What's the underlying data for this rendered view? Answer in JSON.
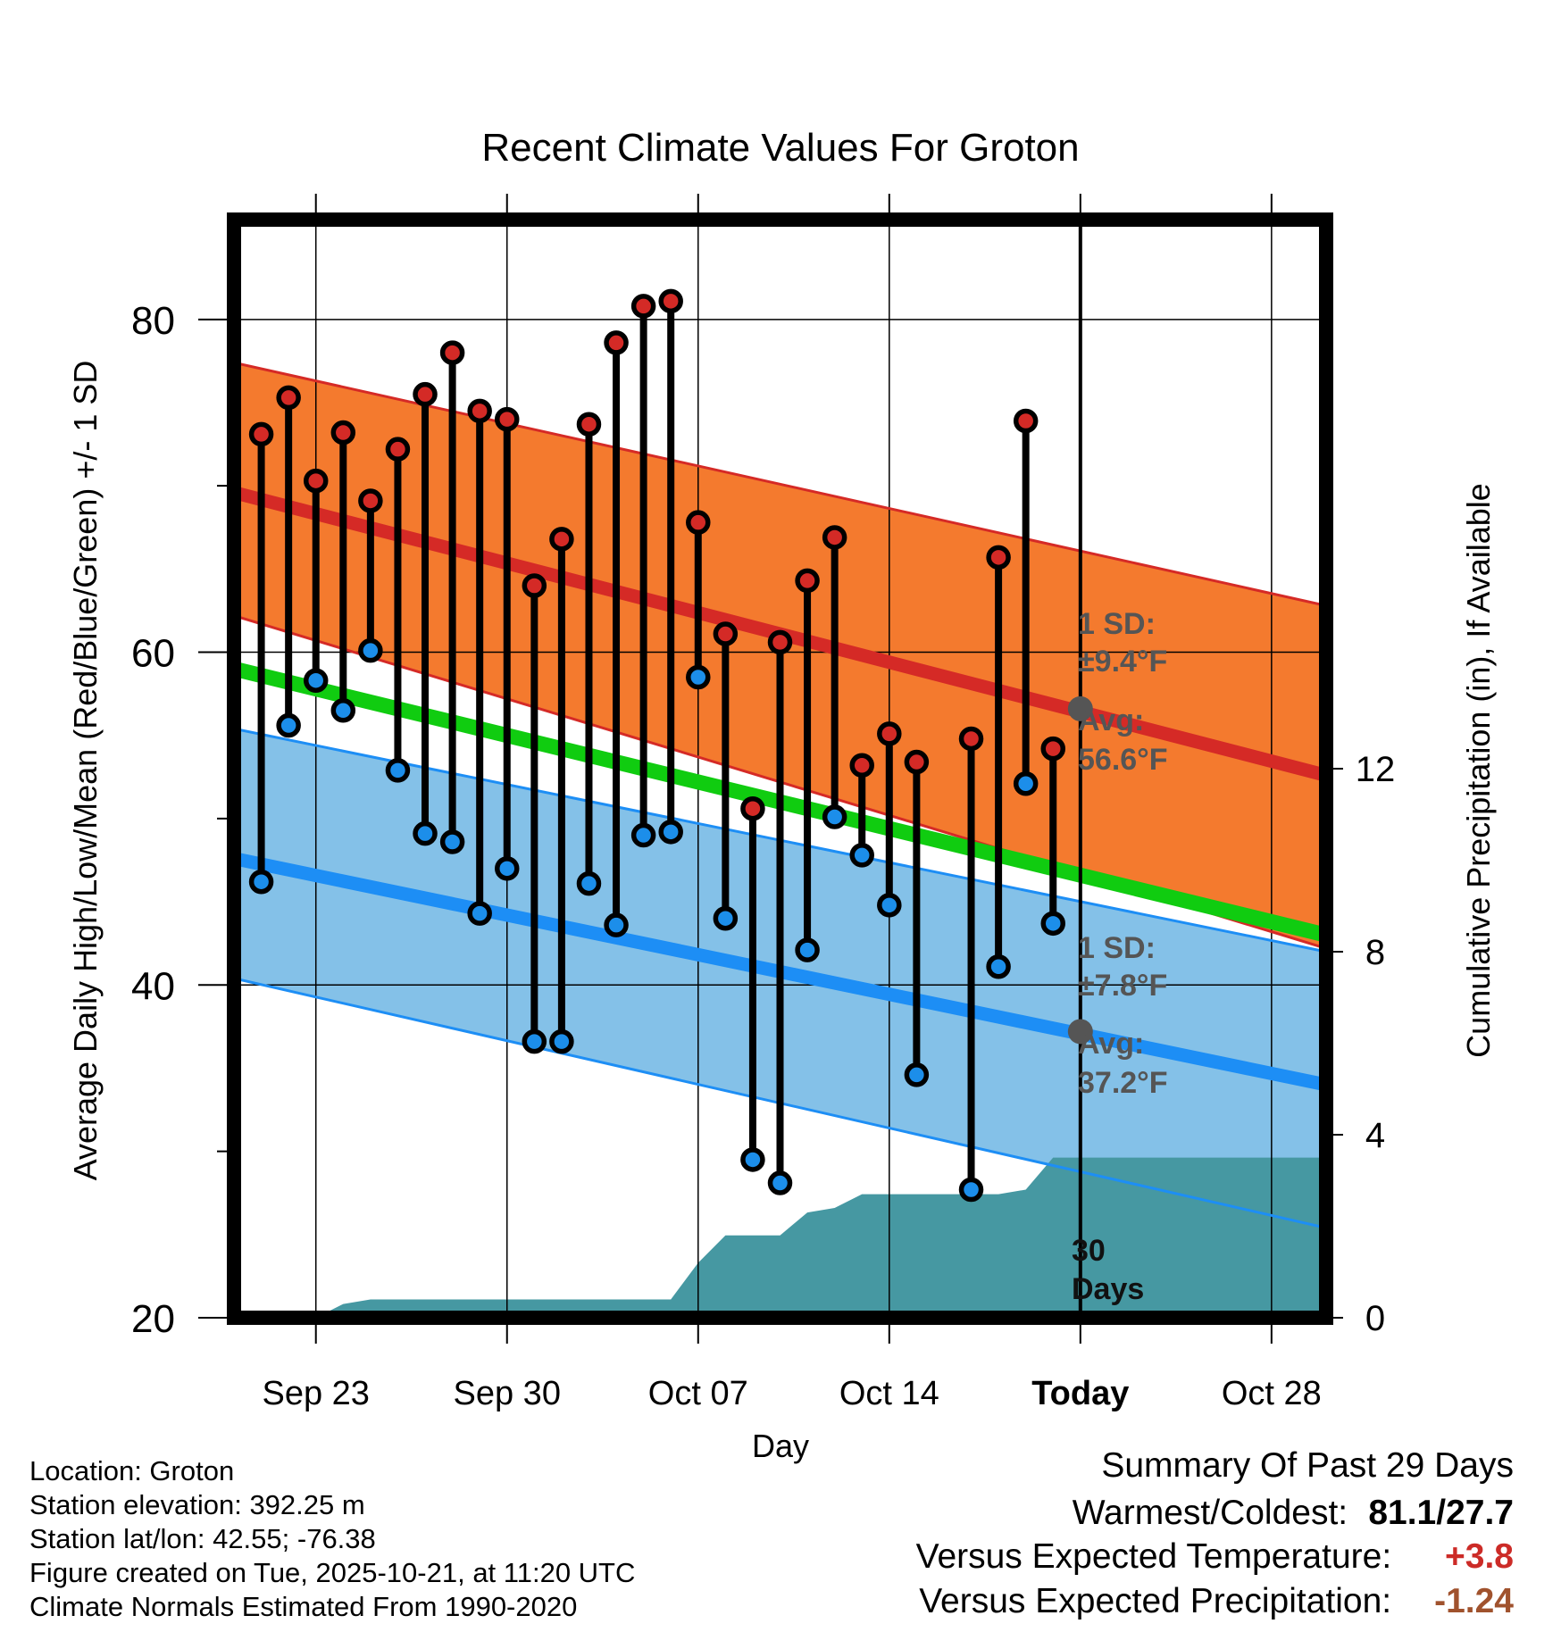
{
  "chart_data": {
    "type": "line",
    "title": "Recent Climate Values For Groton",
    "xlabel": "Day",
    "ylabel": "Average Daily High/Low/Mean (Red/Blue/Green) +/- 1 SD",
    "ylabel_right": "Cumulative Precipitation (in), If Available",
    "x_range_days": [
      0,
      40
    ],
    "ylim": [
      20,
      86
    ],
    "ylim_right": [
      0,
      24
    ],
    "y_ticks": [
      20,
      40,
      60,
      80
    ],
    "y_ticks_right": [
      0,
      4,
      8,
      12
    ],
    "x_ticks": [
      {
        "day": 3,
        "label": "Sep 23"
      },
      {
        "day": 10,
        "label": "Sep 30"
      },
      {
        "day": 17,
        "label": "Oct 07"
      },
      {
        "day": 24,
        "label": "Oct 14"
      },
      {
        "day": 31,
        "label": "Today"
      },
      {
        "day": 38,
        "label": "Oct 28"
      }
    ],
    "today_day": 31,
    "normals": {
      "high_mean": [
        69.6,
        52.6
      ],
      "high_upper": [
        77.4,
        62.8
      ],
      "high_lower": [
        62.2,
        42.2
      ],
      "mean": [
        59,
        43
      ],
      "low_mean": [
        47.6,
        34
      ],
      "low_upper": [
        55.4,
        42
      ],
      "low_lower": [
        40.4,
        25.4
      ]
    },
    "daily": [
      {
        "day": 1,
        "high": 73.1,
        "low": 46.2
      },
      {
        "day": 2,
        "high": 75.3,
        "low": 55.6
      },
      {
        "day": 3,
        "high": 70.3,
        "low": 58.3
      },
      {
        "day": 4,
        "high": 73.2,
        "low": 56.5
      },
      {
        "day": 5,
        "high": 69.1,
        "low": 60.1
      },
      {
        "day": 6,
        "high": 72.2,
        "low": 52.9
      },
      {
        "day": 7,
        "high": 75.5,
        "low": 49.1
      },
      {
        "day": 8,
        "high": 78.0,
        "low": 48.6
      },
      {
        "day": 9,
        "high": 74.5,
        "low": 44.3
      },
      {
        "day": 10,
        "high": 74.0,
        "low": 47.0
      },
      {
        "day": 11,
        "high": 64.0,
        "low": 36.6
      },
      {
        "day": 12,
        "high": 66.8,
        "low": 36.6
      },
      {
        "day": 13,
        "high": 73.7,
        "low": 46.1
      },
      {
        "day": 14,
        "high": 78.6,
        "low": 43.6
      },
      {
        "day": 15,
        "high": 80.8,
        "low": 49.0
      },
      {
        "day": 16,
        "high": 81.1,
        "low": 49.2
      },
      {
        "day": 17,
        "high": 67.8,
        "low": 58.5
      },
      {
        "day": 18,
        "high": 61.1,
        "low": 44.0
      },
      {
        "day": 19,
        "high": 50.6,
        "low": 29.5
      },
      {
        "day": 20,
        "high": 60.6,
        "low": 28.1
      },
      {
        "day": 21,
        "high": 64.3,
        "low": 42.1
      },
      {
        "day": 22,
        "high": 66.9,
        "low": 50.1
      },
      {
        "day": 23,
        "high": 53.2,
        "low": 47.8
      },
      {
        "day": 24,
        "high": 55.1,
        "low": 44.8
      },
      {
        "day": 25,
        "high": 53.4,
        "low": 34.6
      },
      {
        "day": 27,
        "high": 54.8,
        "low": 27.7
      },
      {
        "day": 28,
        "high": 65.7,
        "low": 41.1
      },
      {
        "day": 29,
        "high": 73.9,
        "low": 52.1
      },
      {
        "day": 30,
        "high": 54.2,
        "low": 43.7
      }
    ],
    "precip_cumulative": [
      {
        "day": 3,
        "value": 0.0
      },
      {
        "day": 4,
        "value": 0.3
      },
      {
        "day": 5,
        "value": 0.4
      },
      {
        "day": 16,
        "value": 0.4
      },
      {
        "day": 17,
        "value": 1.2
      },
      {
        "day": 18,
        "value": 1.8
      },
      {
        "day": 20,
        "value": 1.8
      },
      {
        "day": 21,
        "value": 2.3
      },
      {
        "day": 22,
        "value": 2.4
      },
      {
        "day": 23,
        "value": 2.7
      },
      {
        "day": 28,
        "value": 2.7
      },
      {
        "day": 29,
        "value": 2.8
      },
      {
        "day": 30,
        "value": 3.5
      },
      {
        "day": 40,
        "value": 3.5
      }
    ],
    "annotations": {
      "high_sd_label": "1 SD:",
      "high_sd_value": "±9.4°F",
      "high_sd_num": 9.4,
      "high_avg_label": "Avg:",
      "high_avg_value": "56.6°F",
      "high_avg_num": 56.6,
      "low_sd_label": "1 SD:",
      "low_sd_value": "±7.8°F",
      "low_sd_num": 7.8,
      "low_avg_label": "Avg:",
      "low_avg_value": "37.2°F",
      "low_avg_num": 37.2,
      "period_label_1": "30",
      "period_label_2": "Days"
    },
    "colors": {
      "high_band": "#F47A2E",
      "high_line": "#D52A26",
      "mean_line": "#10CC10",
      "low_band": "#84C1E8",
      "low_line": "#1D8EF5",
      "precip": "#4698A2",
      "annot": "#555555",
      "dot_high": "#D42A26",
      "dot_low": "#1C8EEA"
    }
  },
  "info": {
    "location": "Location: Groton",
    "elevation": "Station elevation: 392.25 m",
    "latlon": "Station lat/lon: 42.55; -76.38",
    "created": "Figure created on Tue, 2025-10-21, at 11:20 UTC",
    "normals_period": "Climate Normals Estimated From 1990-2020"
  },
  "summary": {
    "heading": "Summary Of Past 29 Days",
    "warm_cold_label": "Warmest/Coldest:",
    "warm_cold_value": "81.1/27.7",
    "temp_label": "Versus Expected Temperature:",
    "temp_value": "+3.8",
    "precip_label": "Versus Expected Precipitation:",
    "precip_value": "-1.24",
    "temp_color": "#CC2B27",
    "precip_color": "#A0522D"
  }
}
